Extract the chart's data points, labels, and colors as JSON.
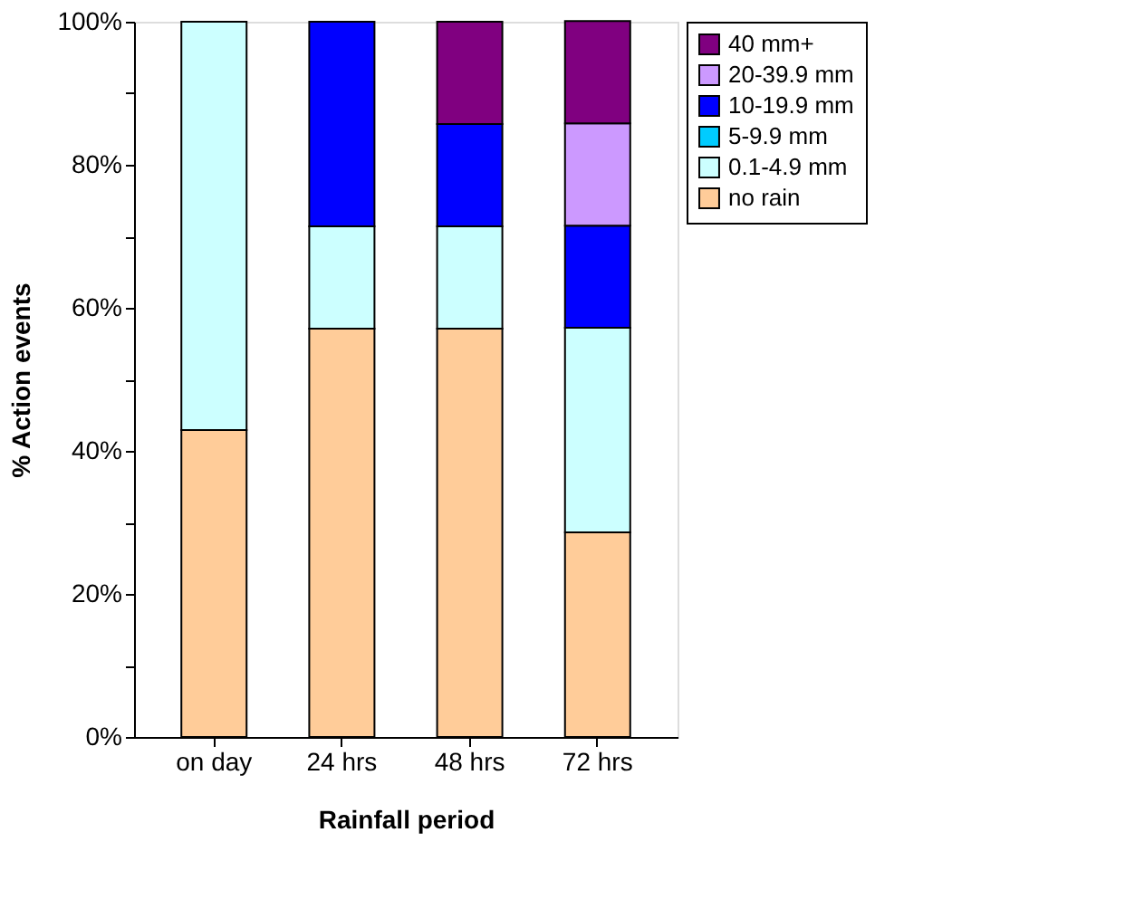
{
  "chart_data": {
    "type": "bar",
    "stacked": true,
    "xlabel": "Rainfall period",
    "ylabel": "% Action events",
    "categories": [
      "on day",
      "24 hrs",
      "48 hrs",
      "72 hrs"
    ],
    "series": [
      {
        "name": "no rain",
        "color": "#ffcc99",
        "values": [
          42.9,
          57.1,
          57.1,
          28.6
        ]
      },
      {
        "name": "0.1-4.9 mm",
        "color": "#ccffff",
        "values": [
          57.1,
          14.3,
          14.3,
          28.6
        ]
      },
      {
        "name": "5-9.9 mm",
        "color": "#00ccff",
        "values": [
          0,
          0,
          0,
          0
        ]
      },
      {
        "name": "10-19.9 mm",
        "color": "#0000ff",
        "values": [
          0,
          28.6,
          14.3,
          14.3
        ]
      },
      {
        "name": "20-39.9 mm",
        "color": "#cc99ff",
        "values": [
          0,
          0,
          0,
          14.3
        ]
      },
      {
        "name": "40 mm+",
        "color": "#800080",
        "values": [
          0,
          0,
          14.3,
          14.3
        ]
      }
    ],
    "ylim": [
      0,
      100
    ],
    "yticks": [
      {
        "value": 0,
        "label": "0%"
      },
      {
        "value": 10,
        "label": null
      },
      {
        "value": 20,
        "label": "20%"
      },
      {
        "value": 30,
        "label": null
      },
      {
        "value": 40,
        "label": "40%"
      },
      {
        "value": 50,
        "label": null
      },
      {
        "value": 60,
        "label": "60%"
      },
      {
        "value": 70,
        "label": null
      },
      {
        "value": 80,
        "label": "80%"
      },
      {
        "value": 90,
        "label": null
      },
      {
        "value": 100,
        "label": "100%"
      }
    ],
    "grid": false,
    "legend": "top right"
  }
}
